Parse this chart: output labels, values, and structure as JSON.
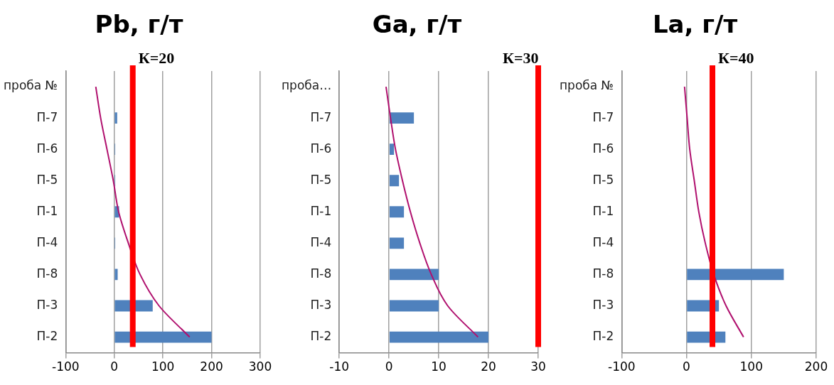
{
  "chart_data": [
    {
      "type": "bar",
      "orientation": "horizontal",
      "title": "Pb, г/т",
      "categories": [
        "проба №",
        "П-7",
        "П-6",
        "П-5",
        "П-1",
        "П-4",
        "П-8",
        "П-3",
        "П-2"
      ],
      "series": [
        {
          "type": "bar",
          "color": "#4f81bd",
          "values": [
            null,
            6,
            2,
            2,
            10,
            2,
            7,
            79,
            200
          ]
        },
        {
          "type": "line",
          "color": "#b0106e",
          "marker": "none",
          "values": [
            -38,
            -28,
            -15,
            -2,
            9,
            29,
            53,
            92,
            155
          ]
        }
      ],
      "xlim": [
        -100,
        300
      ],
      "xticks": [
        -100,
        0,
        100,
        200,
        300
      ],
      "grid": "x",
      "legend": false,
      "ref_lines": [
        {
          "axis": "x",
          "value": 38,
          "color": "#ff0000"
        }
      ],
      "annotations": [
        "К=20"
      ]
    },
    {
      "type": "bar",
      "orientation": "horizontal",
      "title": "Ga, г/т",
      "categories": [
        "проба…",
        "П-7",
        "П-6",
        "П-5",
        "П-1",
        "П-4",
        "П-8",
        "П-3",
        "П-2"
      ],
      "series": [
        {
          "type": "bar",
          "color": "#4f81bd",
          "values": [
            null,
            5,
            1,
            2,
            3,
            3,
            10,
            10,
            20
          ]
        },
        {
          "type": "line",
          "color": "#b0106e",
          "marker": "none",
          "values": [
            -0.6,
            0.3,
            1.3,
            2.7,
            4.3,
            6.2,
            8.5,
            11.8,
            17.9
          ]
        }
      ],
      "xlim": [
        -10,
        30
      ],
      "xticks": [
        -10,
        0,
        10,
        20,
        30
      ],
      "grid": "x",
      "legend": false,
      "ref_lines": [
        {
          "axis": "x",
          "value": 30,
          "label": "К=30",
          "color": "#ff0000"
        }
      ]
    },
    {
      "type": "bar",
      "orientation": "horizontal",
      "title": "La, г/т",
      "categories": [
        "проба №",
        "П-7",
        "П-6",
        "П-5",
        "П-1",
        "П-4",
        "П-8",
        "П-3",
        "П-2"
      ],
      "series": [
        {
          "type": "bar",
          "color": "#4f81bd",
          "values": [
            null,
            0,
            0,
            0,
            0,
            0,
            150,
            50,
            60
          ]
        },
        {
          "type": "line",
          "color": "#b0106e",
          "marker": "none",
          "values": [
            -3,
            1,
            5,
            12,
            19,
            29,
            42,
            61,
            88
          ]
        }
      ],
      "xlim": [
        -100,
        200
      ],
      "xticks": [
        -100,
        0,
        100,
        200
      ],
      "grid": "x",
      "legend": false,
      "ref_lines": [
        {
          "axis": "x",
          "value": 40,
          "label": "К=40",
          "color": "#ff0000"
        }
      ]
    }
  ]
}
